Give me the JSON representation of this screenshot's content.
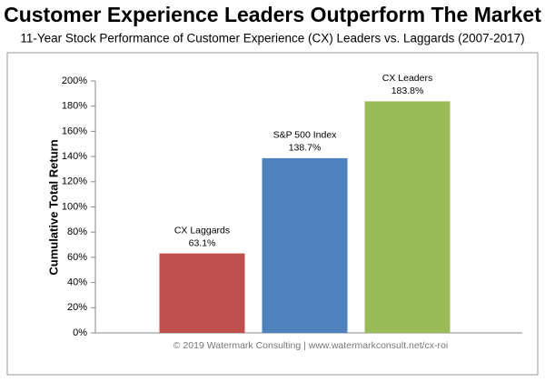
{
  "chart_data": {
    "type": "bar",
    "title": "Customer Experience Leaders Outperform The Market",
    "subtitle": "11-Year Stock Performance of Customer Experience (CX) Leaders vs. Laggards (2007-2017)",
    "y_label": "Cumulative Total Return",
    "footnote": "© 2019 Watermark Consulting | www.watermarkconsult.net/cx-roi",
    "categories": [
      "CX Laggards",
      "S&P 500 Index",
      "CX Leaders"
    ],
    "values": [
      63.1,
      138.7,
      183.8
    ],
    "value_labels": [
      "63.1%",
      "138.7%",
      "183.8%"
    ],
    "colors": [
      "#c0504d",
      "#4f81bd",
      "#9bbb59"
    ],
    "ylim": [
      0,
      200
    ],
    "yticks": [
      {
        "value": 0,
        "label": "0%"
      },
      {
        "value": 20,
        "label": "20%"
      },
      {
        "value": 40,
        "label": "40%"
      },
      {
        "value": 60,
        "label": "60%"
      },
      {
        "value": 80,
        "label": "80%"
      },
      {
        "value": 100,
        "label": "100%"
      },
      {
        "value": 120,
        "label": "120%"
      },
      {
        "value": 140,
        "label": "140%"
      },
      {
        "value": 160,
        "label": "160%"
      },
      {
        "value": 180,
        "label": "180%"
      },
      {
        "value": 200,
        "label": "200%"
      }
    ],
    "grid": false
  }
}
